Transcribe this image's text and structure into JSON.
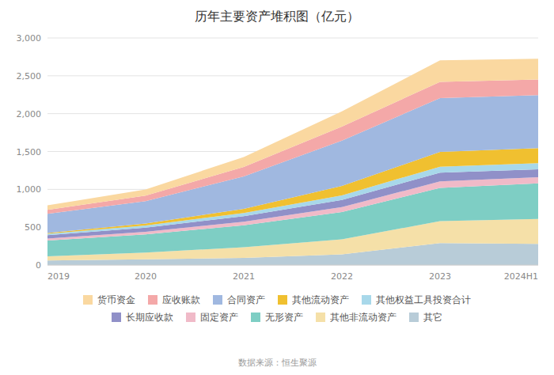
{
  "chart_data": {
    "type": "area",
    "stacked": true,
    "title": "历年主要资产堆积图（亿元）",
    "annotations": [
      "数据来源：恒生聚源"
    ],
    "categories": [
      "2019",
      "2020",
      "2021",
      "2022",
      "2023",
      "2024H1"
    ],
    "series": [
      {
        "name": "其它",
        "color": "#b8ccd8",
        "values": [
          60,
          75,
          95,
          140,
          290,
          280
        ]
      },
      {
        "name": "其他非流动资产",
        "color": "#f5e0a8",
        "values": [
          55,
          90,
          140,
          200,
          290,
          330
        ]
      },
      {
        "name": "无形资产",
        "color": "#7ecec4",
        "values": [
          210,
          240,
          290,
          360,
          440,
          470
        ]
      },
      {
        "name": "固定资产",
        "color": "#f0bac8",
        "values": [
          25,
          35,
          48,
          65,
          85,
          80
        ]
      },
      {
        "name": "长期应收款",
        "color": "#9090c8",
        "values": [
          45,
          55,
          72,
          95,
          115,
          105
        ]
      },
      {
        "name": "其他权益工具投资合计",
        "color": "#a8d8ea",
        "values": [
          18,
          28,
          42,
          60,
          80,
          80
        ]
      },
      {
        "name": "其他流动资产",
        "color": "#f0c030",
        "values": [
          10,
          25,
          55,
          125,
          195,
          200
        ]
      },
      {
        "name": "合同资产",
        "color": "#a0b8e0",
        "values": [
          255,
          295,
          430,
          600,
          710,
          700
        ]
      },
      {
        "name": "应收账款",
        "color": "#f4a8a8",
        "values": [
          50,
          75,
          125,
          185,
          215,
          205
        ]
      },
      {
        "name": "货币资金",
        "color": "#fad8a0",
        "values": [
          60,
          80,
          130,
          200,
          285,
          275
        ]
      }
    ],
    "ylim": [
      0,
      3000
    ],
    "yticks": [
      0,
      500,
      {
        "value": 1000,
        "label": "1,000"
      },
      {
        "value": 1500,
        "label": "1,500"
      },
      {
        "value": 2000,
        "label": "2,000"
      },
      {
        "value": 2500,
        "label": "2,500"
      },
      {
        "value": 3000,
        "label": "3,000"
      }
    ],
    "grid": true,
    "legend": "bottom"
  }
}
